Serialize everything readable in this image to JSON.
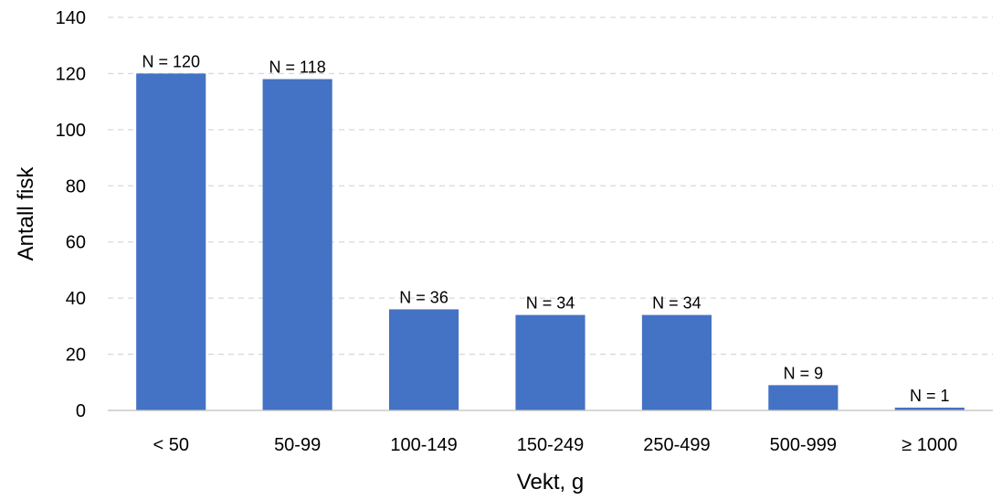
{
  "chart_data": {
    "type": "bar",
    "title": "",
    "xlabel": "Vekt, g",
    "ylabel": "Antall fisk",
    "categories": [
      "< 50",
      "50-99",
      "100-149",
      "150-249",
      "250-499",
      "500-999",
      "≥ 1000"
    ],
    "values": [
      120,
      118,
      36,
      34,
      34,
      9,
      1
    ],
    "data_labels": [
      "N = 120",
      "N = 118",
      "N = 36",
      "N = 34",
      "N = 34",
      "N = 9",
      "N = 1"
    ],
    "ylim": [
      0,
      140
    ],
    "yticks": [
      0,
      20,
      40,
      60,
      80,
      100,
      120,
      140
    ],
    "grid": "horizontal dashed",
    "bar_color": "#4472c4",
    "legend": "none"
  }
}
